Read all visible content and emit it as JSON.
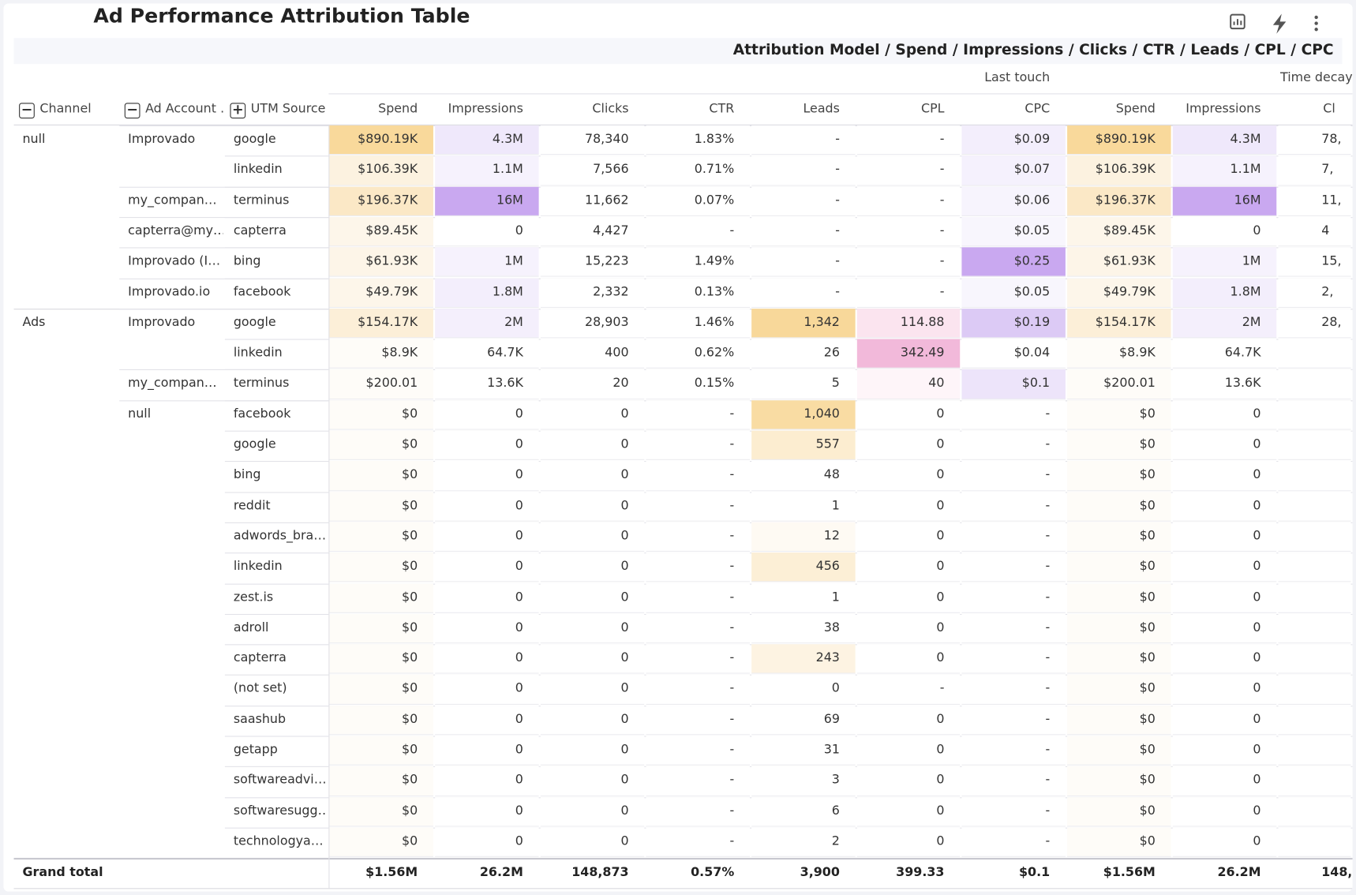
{
  "header": {
    "title": "Ad Performance Attribution Table",
    "subtitle": "Attribution Model / Spend / Impressions / Clicks / CTR / Leads / CPL / CPC"
  },
  "table": {
    "groups": [
      "Last touch",
      "Time decay"
    ],
    "columns": [
      "Channel",
      "Ad Account …",
      "UTM Source",
      "Spend",
      "Impressions",
      "Clicks",
      "CTR",
      "Leads",
      "CPL",
      "CPC",
      "Spend",
      "Impressions",
      "Cl"
    ],
    "rows": [
      [
        "null",
        "Improvado",
        "google",
        "$890.19K",
        "4.3M",
        "78,340",
        "1.83%",
        "-",
        "-",
        "$0.09",
        "$890.19K",
        "4.3M",
        "78,"
      ],
      [
        null,
        null,
        "linkedin",
        "$106.39K",
        "1.1M",
        "7,566",
        "0.71%",
        "-",
        "-",
        "$0.07",
        "$106.39K",
        "1.1M",
        "7,"
      ],
      [
        null,
        "my_compan…",
        "terminus",
        "$196.37K",
        "16M",
        "11,662",
        "0.07%",
        "-",
        "-",
        "$0.06",
        "$196.37K",
        "16M",
        "11,"
      ],
      [
        null,
        "capterra@my…",
        "capterra",
        "$89.45K",
        "0",
        "4,427",
        "-",
        "-",
        "-",
        "$0.05",
        "$89.45K",
        "0",
        "4"
      ],
      [
        null,
        "Improvado (I…",
        "bing",
        "$61.93K",
        "1M",
        "15,223",
        "1.49%",
        "-",
        "-",
        "$0.25",
        "$61.93K",
        "1M",
        "15,"
      ],
      [
        null,
        "Improvado.io",
        "facebook",
        "$49.79K",
        "1.8M",
        "2,332",
        "0.13%",
        "-",
        "-",
        "$0.05",
        "$49.79K",
        "1.8M",
        "2,"
      ],
      [
        "Ads",
        "Improvado",
        "google",
        "$154.17K",
        "2M",
        "28,903",
        "1.46%",
        "1,342",
        "114.88",
        "$0.19",
        "$154.17K",
        "2M",
        "28,"
      ],
      [
        null,
        null,
        "linkedin",
        "$8.9K",
        "64.7K",
        "400",
        "0.62%",
        "26",
        "342.49",
        "$0.04",
        "$8.9K",
        "64.7K",
        null
      ],
      [
        null,
        "my_compan…",
        "terminus",
        "$200.01",
        "13.6K",
        "20",
        "0.15%",
        "5",
        "40",
        "$0.1",
        "$200.01",
        "13.6K",
        null
      ],
      [
        null,
        "null",
        "facebook",
        "$0",
        "0",
        "0",
        "-",
        "1,040",
        "0",
        "-",
        "$0",
        "0",
        null
      ],
      [
        null,
        null,
        "google",
        "$0",
        "0",
        "0",
        "-",
        "557",
        "0",
        "-",
        "$0",
        "0",
        null
      ],
      [
        null,
        null,
        "bing",
        "$0",
        "0",
        "0",
        "-",
        "48",
        "0",
        "-",
        "$0",
        "0",
        null
      ],
      [
        null,
        null,
        "reddit",
        "$0",
        "0",
        "0",
        "-",
        "1",
        "0",
        "-",
        "$0",
        "0",
        null
      ],
      [
        null,
        null,
        "adwords_bra…",
        "$0",
        "0",
        "0",
        "-",
        "12",
        "0",
        "-",
        "$0",
        "0",
        null
      ],
      [
        null,
        null,
        "linkedin",
        "$0",
        "0",
        "0",
        "-",
        "456",
        "0",
        "-",
        "$0",
        "0",
        null
      ],
      [
        null,
        null,
        "zest.is",
        "$0",
        "0",
        "0",
        "-",
        "1",
        "0",
        "-",
        "$0",
        "0",
        null
      ],
      [
        null,
        null,
        "adroll",
        "$0",
        "0",
        "0",
        "-",
        "38",
        "0",
        "-",
        "$0",
        "0",
        null
      ],
      [
        null,
        null,
        "capterra",
        "$0",
        "0",
        "0",
        "-",
        "243",
        "0",
        "-",
        "$0",
        "0",
        null
      ],
      [
        null,
        null,
        "(not set)",
        "$0",
        "0",
        "0",
        "-",
        "0",
        "-",
        "-",
        "$0",
        "0",
        null
      ],
      [
        null,
        null,
        "saashub",
        "$0",
        "0",
        "0",
        "-",
        "69",
        "0",
        "-",
        "$0",
        "0",
        null
      ],
      [
        null,
        null,
        "getapp",
        "$0",
        "0",
        "0",
        "-",
        "31",
        "0",
        "-",
        "$0",
        "0",
        null
      ],
      [
        null,
        null,
        "softwareadvi…",
        "$0",
        "0",
        "0",
        "-",
        "3",
        "0",
        "-",
        "$0",
        "0",
        null
      ],
      [
        null,
        null,
        "softwaresugg…",
        "$0",
        "0",
        "0",
        "-",
        "6",
        "0",
        "-",
        "$0",
        "0",
        null
      ],
      [
        null,
        null,
        "technologya…",
        "$0",
        "0",
        "0",
        "-",
        "2",
        "0",
        "-",
        "$0",
        "0",
        null
      ]
    ],
    "total": [
      "Grand total",
      null,
      null,
      "$1.56M",
      "26.2M",
      "148,873",
      "0.57%",
      "3,900",
      "399.33",
      "$0.1",
      "$1.56M",
      "26.2M",
      "148,"
    ]
  }
}
